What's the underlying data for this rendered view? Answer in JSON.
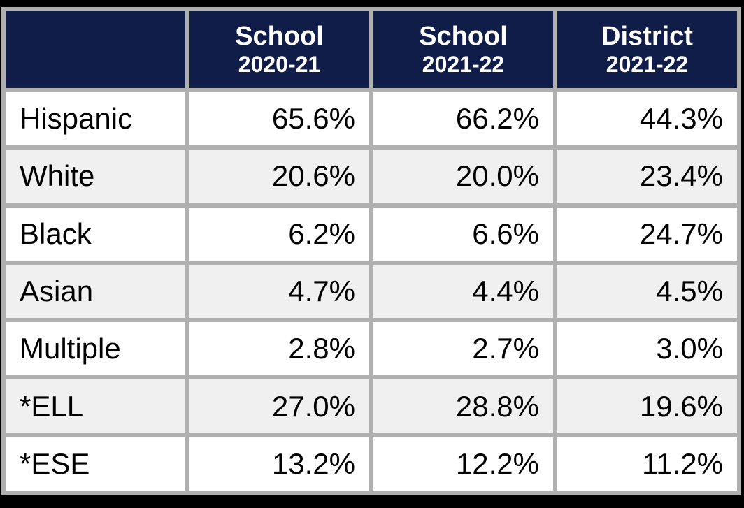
{
  "table": {
    "columns": [
      {
        "title": "",
        "subtitle": ""
      },
      {
        "title": "School",
        "subtitle": "2020-21"
      },
      {
        "title": "School",
        "subtitle": "2021-22"
      },
      {
        "title": "District",
        "subtitle": "2021-22"
      }
    ],
    "rows": [
      {
        "label": "Hispanic",
        "values": [
          "65.6%",
          "66.2%",
          "44.3%"
        ]
      },
      {
        "label": "White",
        "values": [
          "20.6%",
          "20.0%",
          "23.4%"
        ]
      },
      {
        "label": "Black",
        "values": [
          "6.2%",
          "6.6%",
          "24.7%"
        ]
      },
      {
        "label": "Asian",
        "values": [
          "4.7%",
          "4.4%",
          "4.5%"
        ]
      },
      {
        "label": "Multiple",
        "values": [
          "2.8%",
          "2.7%",
          "3.0%"
        ]
      },
      {
        "label": "*ELL",
        "values": [
          "27.0%",
          "28.8%",
          "19.6%"
        ]
      },
      {
        "label": "*ESE",
        "values": [
          "13.2%",
          "12.2%",
          "11.2%"
        ]
      }
    ]
  },
  "colors": {
    "header_bg": "#101d48",
    "header_text": "#ffffff",
    "grid": "#b0b0b0",
    "row_bg": "#ffffff",
    "row_alt_bg": "#f0f0f0",
    "body_text": "#000000",
    "frame": "#000000"
  },
  "chart_data": {
    "type": "table",
    "categories": [
      "Hispanic",
      "White",
      "Black",
      "Asian",
      "Multiple",
      "*ELL",
      "*ESE"
    ],
    "series": [
      {
        "name": "School 2020-21",
        "values": [
          65.6,
          20.6,
          6.2,
          4.7,
          2.8,
          27.0,
          13.2
        ]
      },
      {
        "name": "School 2021-22",
        "values": [
          66.2,
          20.0,
          6.6,
          4.4,
          2.7,
          28.8,
          12.2
        ]
      },
      {
        "name": "District 2021-22",
        "values": [
          44.3,
          23.4,
          24.7,
          4.5,
          3.0,
          19.6,
          11.2
        ]
      }
    ],
    "unit": "%",
    "layout_hints": {
      "header_style": "navy background, white bold two-line headers",
      "row_striping": "alternating white and light gray",
      "value_alignment": "right",
      "label_alignment": "left"
    }
  }
}
